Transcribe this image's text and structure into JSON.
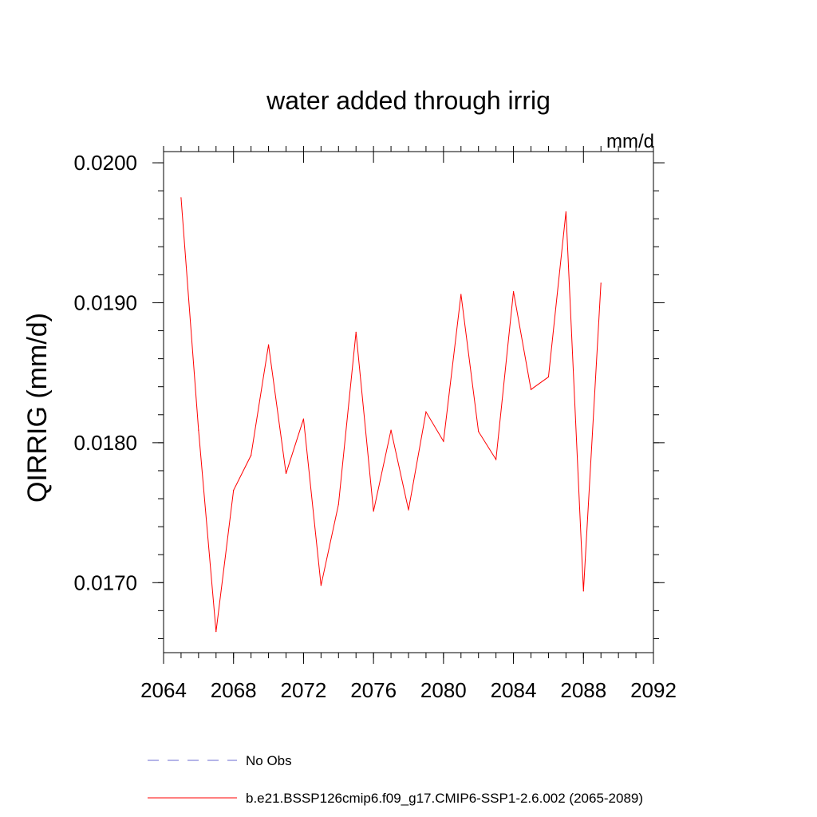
{
  "chart_data": {
    "type": "line",
    "title": "water added through irrig",
    "units_label": "mm/d",
    "ylabel": "QIRRIG  (mm/d)",
    "xlabel": "",
    "xlim": [
      2064,
      2092
    ],
    "ylim": [
      0.0165,
      0.02008
    ],
    "x_ticks": [
      2064,
      2068,
      2072,
      2076,
      2080,
      2084,
      2088,
      2092
    ],
    "x_tick_labels": [
      "2064",
      "2068",
      "2072",
      "2076",
      "2080",
      "2084",
      "2088",
      "2092"
    ],
    "x_minor_step": 1,
    "y_ticks": [
      0.017,
      0.018,
      0.019,
      0.02
    ],
    "y_tick_labels": [
      "0.0170",
      "0.0180",
      "0.0190",
      "0.0200"
    ],
    "y_minor_step": 0.0002,
    "series": [
      {
        "name": "b.e21.BSSP126cmip6.f09_g17.CMIP6-SSP1-2.6.002 (2065-2089)",
        "color": "#ff0000",
        "dash": "solid",
        "x": [
          2065,
          2066,
          2067,
          2068,
          2069,
          2070,
          2071,
          2072,
          2073,
          2074,
          2075,
          2076,
          2077,
          2078,
          2079,
          2080,
          2081,
          2082,
          2083,
          2084,
          2085,
          2086,
          2087,
          2088,
          2089
        ],
        "values": [
          0.01975,
          0.01809,
          0.01665,
          0.01766,
          0.01791,
          0.0187,
          0.01778,
          0.01817,
          0.01698,
          0.01756,
          0.01879,
          0.01751,
          0.01809,
          0.01752,
          0.01822,
          0.01801,
          0.01906,
          0.01808,
          0.01788,
          0.01908,
          0.01838,
          0.01847,
          0.01965,
          0.01694,
          0.01914
        ]
      }
    ],
    "legend": {
      "placement": "bottom",
      "entries": [
        {
          "label": "No Obs",
          "color": "#6a6ad0",
          "dash": "dashed"
        },
        {
          "label": "b.e21.BSSP126cmip6.f09_g17.CMIP6-SSP1-2.6.002 (2065-2089)",
          "color": "#ff0000",
          "dash": "solid"
        }
      ]
    }
  }
}
